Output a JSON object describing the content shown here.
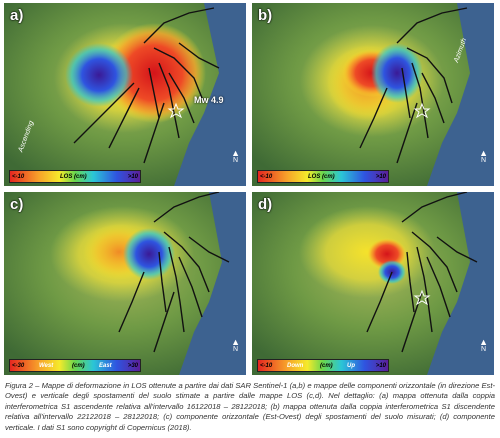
{
  "panels": {
    "a": {
      "label": "a)",
      "cb_min": "<-10",
      "cb_mid": "LOS (cm)",
      "cb_max": ">10",
      "mw": "Mw 4.9",
      "orbit": "Ascending",
      "north": "N"
    },
    "b": {
      "label": "b)",
      "cb_min": "<-10",
      "cb_mid": "LOS (cm)",
      "cb_max": ">10",
      "orbit": "Azimuth",
      "north": "N"
    },
    "c": {
      "label": "c)",
      "cb_min": "<-30",
      "cb_left": "West",
      "cb_mid": "(cm)",
      "cb_right": "East",
      "cb_max": ">30",
      "north": "N"
    },
    "d": {
      "label": "d)",
      "cb_min": "<-10",
      "cb_left": "Down",
      "cb_mid": "(cm)",
      "cb_right": "Up",
      "cb_max": ">10",
      "north": "N"
    }
  },
  "caption": "Figura 2 – Mappe di deformazione in LOS ottenute a partire dai dati SAR Sentinel-1 (a,b) e mappe delle componenti orizzontale (in direzione Est-Ovest) e verticale degli spostamenti del suolo stimate a partire dalle mappe LOS (c,d). Nel dettaglio: (a) mappa ottenuta dalla coppia interferometrica S1 ascendente relativa all'intervallo 16122018 – 28122018; (b) mappa ottenuta dalla coppia interferometrica S1 discendente relativa all'intervallo 22122018 – 28122018; (c) componente orizzontale (Est-Ovest) degli spostamenti del suolo misurati; (d) componente verticale. I dati S1 sono copyright di Copernicus (2018)."
}
